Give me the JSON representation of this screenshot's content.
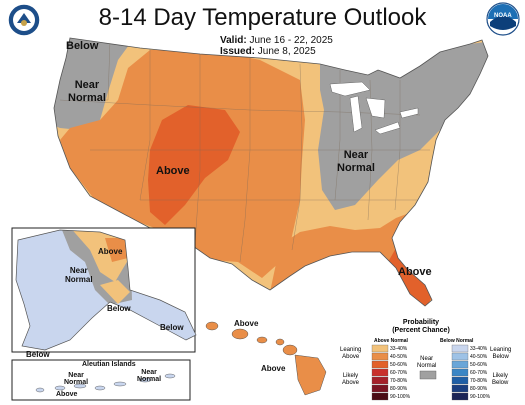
{
  "title": "8-14 Day Temperature Outlook",
  "valid": {
    "label": "Valid:",
    "value": "June 16 - 22, 2025"
  },
  "issued": {
    "label": "Issued:",
    "value": "June 8, 2025"
  },
  "logos": {
    "left": "doc-seal",
    "right": "noaa-logo",
    "noaa_text": "NOAA"
  },
  "map_labels": {
    "below_nw": "Below",
    "near_normal_w": "Near\nNormal",
    "above_central": "Above",
    "near_normal_east": "Near\nNormal",
    "above_fl": "Above",
    "ak_above": "Above",
    "ak_near_normal": "Near\nNormal",
    "ak_below_1": "Below",
    "ak_below_2": "Below",
    "ak_below_3": "Below",
    "aleutian_title": "Aleutian Islands",
    "aleutian_near_normal_1": "Near\nNormal",
    "aleutian_near_normal_2": "Near\nNormal",
    "aleutian_above": "Above",
    "hi_above_1": "Above",
    "hi_above_2": "Above"
  },
  "legend": {
    "title": "Probability\n(Percent Chance)",
    "above_head": "Above Normal",
    "below_head": "Below Normal",
    "leaning_above": "Leaning\nAbove",
    "likely_above": "Likely\nAbove",
    "near_normal": "Near\nNormal",
    "leaning_below": "Leaning\nBelow",
    "likely_below": "Likely\nBelow",
    "above_bins": [
      "33-40%",
      "40-50%",
      "50-60%",
      "60-70%",
      "70-80%",
      "80-90%",
      "90-100%"
    ],
    "below_bins": [
      "33-40%",
      "40-50%",
      "50-60%",
      "60-70%",
      "70-80%",
      "80-90%",
      "90-100%"
    ],
    "above_colors": [
      "#f2c27b",
      "#e98e48",
      "#e2612b",
      "#c9302c",
      "#a5202a",
      "#7a1423",
      "#4a0b15"
    ],
    "below_colors": [
      "#c9d6ee",
      "#9ec2e6",
      "#6aa6d8",
      "#3a86c5",
      "#1f5fa6",
      "#1b3f80",
      "#1b2456"
    ],
    "near_color": "#a0a0a0"
  },
  "colors": {
    "above_33_40": "#f2c27b",
    "above_40_50": "#e98e48",
    "above_50_60": "#e2612b",
    "near_normal": "#a0a0a0",
    "below_33_40": "#c9d6ee"
  }
}
